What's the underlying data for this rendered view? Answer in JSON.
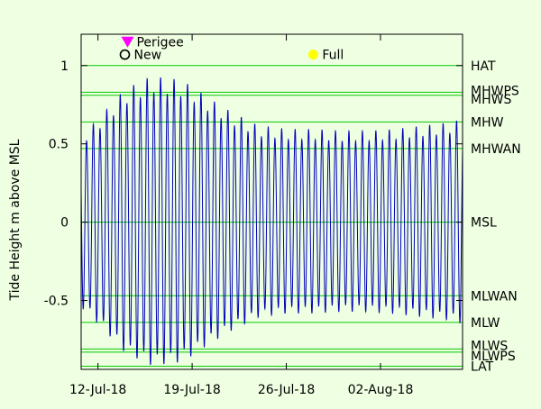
{
  "chart_data": {
    "type": "line",
    "ylabel": "Tide Height m above MSL",
    "xlabel": "",
    "ylim": [
      -0.94,
      1.2
    ],
    "xlim": [
      10.75,
      39.1
    ],
    "y_ticks": [
      {
        "label": "1",
        "value": 1
      },
      {
        "label": "0.5",
        "value": 0.5
      },
      {
        "label": "0",
        "value": 0
      },
      {
        "label": "-0.5",
        "value": -0.5
      }
    ],
    "x_ticks": [
      {
        "label": "12-Jul-18",
        "value": 12
      },
      {
        "label": "19-Jul-18",
        "value": 19
      },
      {
        "label": "26-Jul-18",
        "value": 26
      },
      {
        "label": "02-Aug-18",
        "value": 33
      }
    ],
    "reference_levels": [
      {
        "label": "HAT",
        "value": 1.0
      },
      {
        "label": "MHWPS",
        "value": 0.83
      },
      {
        "label": "MHWS",
        "value": 0.81
      },
      {
        "label": "MHW",
        "value": 0.64
      },
      {
        "label": "MHWAN",
        "value": 0.47
      },
      {
        "label": "MSL",
        "value": 0.0
      },
      {
        "label": "MLWAN",
        "value": -0.47
      },
      {
        "label": "MLW",
        "value": -0.64
      },
      {
        "label": "MLWS",
        "value": -0.81
      },
      {
        "label": "MLWPS",
        "value": -0.83
      },
      {
        "label": "LAT",
        "value": -0.92
      }
    ],
    "events": [
      {
        "label": "Perigee",
        "x": 14.2,
        "y": 1.15,
        "symbol": "triangle-down",
        "color": "#ff00ff"
      },
      {
        "label": "New",
        "x": 14.0,
        "y": 1.07,
        "symbol": "open-circle",
        "color": "#000000"
      },
      {
        "label": "Full",
        "x": 28.0,
        "y": 1.07,
        "symbol": "filled-circle",
        "color": "#ffff00"
      }
    ],
    "tide_series": {
      "name": "",
      "period_days": 0.5,
      "amplitude_envelope": {
        "x": [
          10.75,
          12,
          14,
          16,
          18,
          19,
          20,
          22,
          24,
          26,
          28,
          30,
          32,
          34,
          36,
          38,
          39.1
        ],
        "amplitude": [
          0.52,
          0.62,
          0.8,
          0.88,
          0.86,
          0.82,
          0.76,
          0.66,
          0.58,
          0.56,
          0.56,
          0.55,
          0.55,
          0.56,
          0.58,
          0.6,
          0.62
        ]
      }
    },
    "grid": false,
    "legend": "none",
    "colors": {
      "background": "#efffe2",
      "plot_background": "#efffe2",
      "tide_line": "#0000bb",
      "reference_line": "#00cc00"
    }
  }
}
